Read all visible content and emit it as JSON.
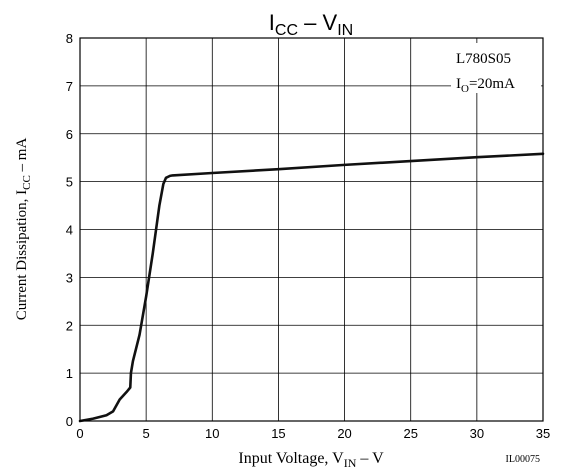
{
  "chart_data": {
    "type": "line",
    "title": {
      "main": "I",
      "main_sub": "CC",
      "sep": " – ",
      "main2": "V",
      "main2_sub": "IN"
    },
    "xlabel": {
      "pre": "Input Voltage, V",
      "sub": "IN",
      "post": " – V"
    },
    "ylabel": {
      "pre": "Current Dissipation, I",
      "sub": "CC",
      "post": " – mA"
    },
    "annotation": {
      "line1": "L780S05",
      "line2_pre": "I",
      "line2_sub": "O",
      "line2_post": "=20mA"
    },
    "code": "IL00075",
    "xlim": [
      0,
      35
    ],
    "ylim": [
      0,
      8
    ],
    "xticks": [
      "0",
      "5",
      "10",
      "15",
      "20",
      "25",
      "30",
      "35"
    ],
    "yticks": [
      "0",
      "1",
      "2",
      "3",
      "4",
      "5",
      "6",
      "7",
      "8"
    ],
    "grid": true,
    "series": [
      {
        "x": [
          0,
          1,
          2,
          2.5,
          3,
          3.5,
          3.8,
          3.85,
          4,
          4.5,
          5,
          5.5,
          6,
          6.3,
          6.5,
          6.8,
          7,
          10,
          15,
          20,
          25,
          30,
          35
        ],
        "y": [
          0,
          0.05,
          0.12,
          0.2,
          0.45,
          0.6,
          0.7,
          1.0,
          1.25,
          1.8,
          2.6,
          3.5,
          4.5,
          4.95,
          5.08,
          5.12,
          5.13,
          5.18,
          5.26,
          5.35,
          5.43,
          5.51,
          5.58
        ]
      }
    ]
  }
}
